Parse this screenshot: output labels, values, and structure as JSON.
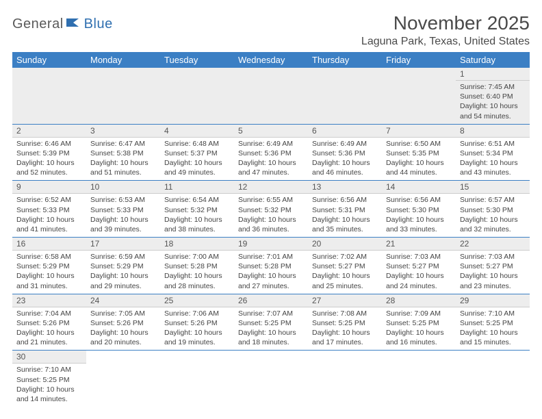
{
  "logo": {
    "part1": "General",
    "part2": "Blue"
  },
  "title": "November 2025",
  "location": "Laguna Park, Texas, United States",
  "colors": {
    "header_bg": "#3b7fc4",
    "header_text": "#ffffff",
    "daynum_bg": "#ededed",
    "border": "#3b7fc4",
    "logo_gray": "#5a5a5a",
    "logo_blue": "#2f6fb0",
    "text": "#444444"
  },
  "weekdays": [
    "Sunday",
    "Monday",
    "Tuesday",
    "Wednesday",
    "Thursday",
    "Friday",
    "Saturday"
  ],
  "layout": {
    "columns": 7,
    "leading_blanks": 6
  },
  "days": [
    {
      "n": "1",
      "sr": "7:45 AM",
      "ss": "6:40 PM",
      "dl": "10 hours and 54 minutes."
    },
    {
      "n": "2",
      "sr": "6:46 AM",
      "ss": "5:39 PM",
      "dl": "10 hours and 52 minutes."
    },
    {
      "n": "3",
      "sr": "6:47 AM",
      "ss": "5:38 PM",
      "dl": "10 hours and 51 minutes."
    },
    {
      "n": "4",
      "sr": "6:48 AM",
      "ss": "5:37 PM",
      "dl": "10 hours and 49 minutes."
    },
    {
      "n": "5",
      "sr": "6:49 AM",
      "ss": "5:36 PM",
      "dl": "10 hours and 47 minutes."
    },
    {
      "n": "6",
      "sr": "6:49 AM",
      "ss": "5:36 PM",
      "dl": "10 hours and 46 minutes."
    },
    {
      "n": "7",
      "sr": "6:50 AM",
      "ss": "5:35 PM",
      "dl": "10 hours and 44 minutes."
    },
    {
      "n": "8",
      "sr": "6:51 AM",
      "ss": "5:34 PM",
      "dl": "10 hours and 43 minutes."
    },
    {
      "n": "9",
      "sr": "6:52 AM",
      "ss": "5:33 PM",
      "dl": "10 hours and 41 minutes."
    },
    {
      "n": "10",
      "sr": "6:53 AM",
      "ss": "5:33 PM",
      "dl": "10 hours and 39 minutes."
    },
    {
      "n": "11",
      "sr": "6:54 AM",
      "ss": "5:32 PM",
      "dl": "10 hours and 38 minutes."
    },
    {
      "n": "12",
      "sr": "6:55 AM",
      "ss": "5:32 PM",
      "dl": "10 hours and 36 minutes."
    },
    {
      "n": "13",
      "sr": "6:56 AM",
      "ss": "5:31 PM",
      "dl": "10 hours and 35 minutes."
    },
    {
      "n": "14",
      "sr": "6:56 AM",
      "ss": "5:30 PM",
      "dl": "10 hours and 33 minutes."
    },
    {
      "n": "15",
      "sr": "6:57 AM",
      "ss": "5:30 PM",
      "dl": "10 hours and 32 minutes."
    },
    {
      "n": "16",
      "sr": "6:58 AM",
      "ss": "5:29 PM",
      "dl": "10 hours and 31 minutes."
    },
    {
      "n": "17",
      "sr": "6:59 AM",
      "ss": "5:29 PM",
      "dl": "10 hours and 29 minutes."
    },
    {
      "n": "18",
      "sr": "7:00 AM",
      "ss": "5:28 PM",
      "dl": "10 hours and 28 minutes."
    },
    {
      "n": "19",
      "sr": "7:01 AM",
      "ss": "5:28 PM",
      "dl": "10 hours and 27 minutes."
    },
    {
      "n": "20",
      "sr": "7:02 AM",
      "ss": "5:27 PM",
      "dl": "10 hours and 25 minutes."
    },
    {
      "n": "21",
      "sr": "7:03 AM",
      "ss": "5:27 PM",
      "dl": "10 hours and 24 minutes."
    },
    {
      "n": "22",
      "sr": "7:03 AM",
      "ss": "5:27 PM",
      "dl": "10 hours and 23 minutes."
    },
    {
      "n": "23",
      "sr": "7:04 AM",
      "ss": "5:26 PM",
      "dl": "10 hours and 21 minutes."
    },
    {
      "n": "24",
      "sr": "7:05 AM",
      "ss": "5:26 PM",
      "dl": "10 hours and 20 minutes."
    },
    {
      "n": "25",
      "sr": "7:06 AM",
      "ss": "5:26 PM",
      "dl": "10 hours and 19 minutes."
    },
    {
      "n": "26",
      "sr": "7:07 AM",
      "ss": "5:25 PM",
      "dl": "10 hours and 18 minutes."
    },
    {
      "n": "27",
      "sr": "7:08 AM",
      "ss": "5:25 PM",
      "dl": "10 hours and 17 minutes."
    },
    {
      "n": "28",
      "sr": "7:09 AM",
      "ss": "5:25 PM",
      "dl": "10 hours and 16 minutes."
    },
    {
      "n": "29",
      "sr": "7:10 AM",
      "ss": "5:25 PM",
      "dl": "10 hours and 15 minutes."
    },
    {
      "n": "30",
      "sr": "7:10 AM",
      "ss": "5:25 PM",
      "dl": "10 hours and 14 minutes."
    }
  ],
  "labels": {
    "sunrise": "Sunrise:",
    "sunset": "Sunset:",
    "daylight": "Daylight:"
  }
}
